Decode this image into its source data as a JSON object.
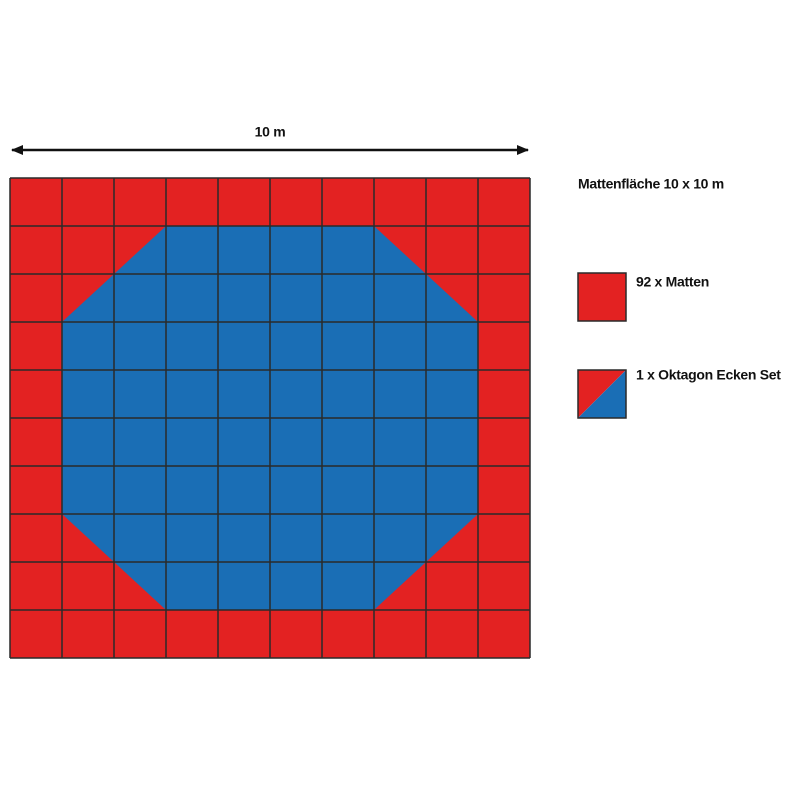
{
  "dimension_label": "10 m",
  "legend": {
    "title": "Mattenfläche 10 x 10 m",
    "items": [
      {
        "label": "92 x Matten"
      },
      {
        "label": "1 x Oktagon Ecken Set"
      }
    ]
  }
}
